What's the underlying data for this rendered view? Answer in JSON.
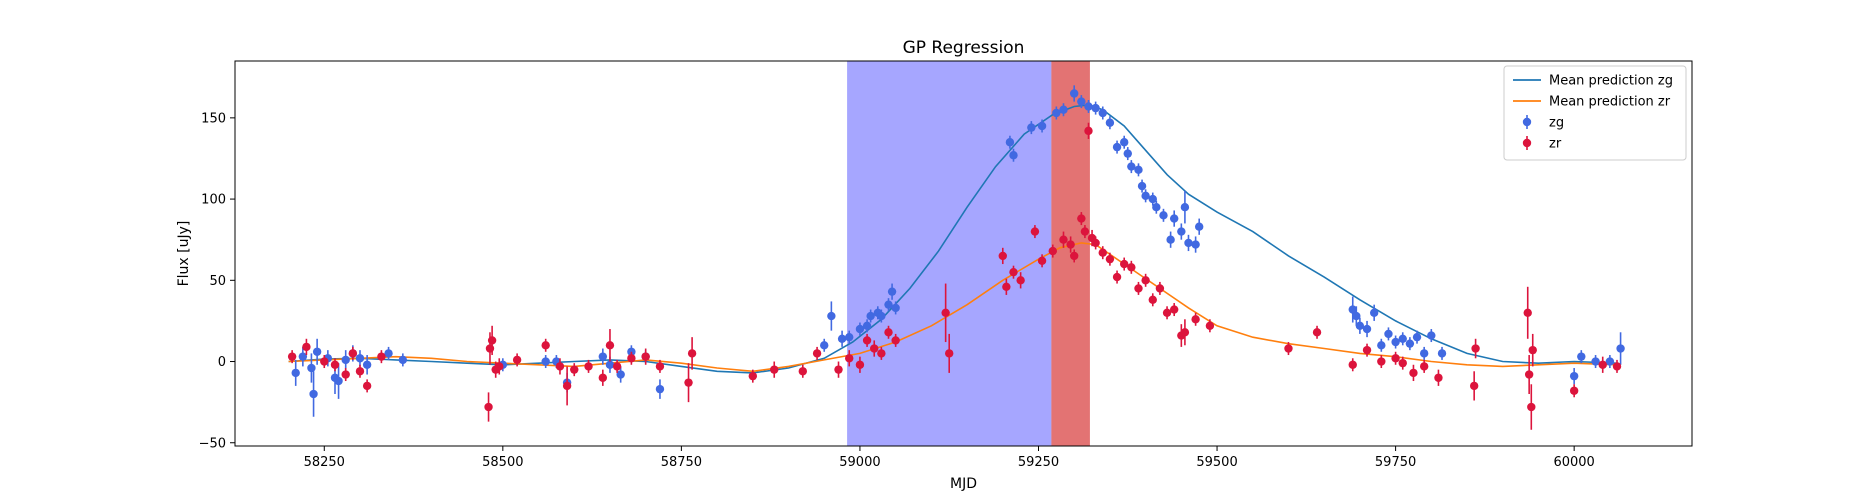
{
  "chart_data": {
    "type": "scatter",
    "title": "GP Regression",
    "xlabel": "MJD",
    "ylabel": "Flux [uJy]",
    "xlim": [
      58125,
      60165
    ],
    "ylim": [
      -52,
      185
    ],
    "xticks": [
      58250,
      58500,
      58750,
      59000,
      59250,
      59500,
      59750,
      60000
    ],
    "yticks": [
      -50,
      0,
      50,
      100,
      150
    ],
    "grid": false,
    "legend_position": "top-right",
    "shaded_regions": [
      {
        "x0": 58982,
        "x1": 59268,
        "color": "#0000ff",
        "opacity": 0.35
      },
      {
        "x0": 59268,
        "x1": 59322,
        "color": "#cc0000",
        "opacity": 0.55
      }
    ],
    "series": [
      {
        "name": "Mean prediction zg",
        "kind": "line",
        "color": "#1f77b4",
        "x": [
          58200,
          58250,
          58300,
          58350,
          58400,
          58450,
          58500,
          58550,
          58600,
          58650,
          58700,
          58750,
          58800,
          58850,
          58900,
          58950,
          58990,
          59030,
          59070,
          59110,
          59150,
          59190,
          59230,
          59270,
          59300,
          59320,
          59340,
          59370,
          59400,
          59430,
          59460,
          59500,
          59550,
          59600,
          59650,
          59700,
          59750,
          59800,
          59850,
          59900,
          59950,
          60000,
          60060
        ],
        "y": [
          0,
          1.5,
          2,
          1,
          0,
          -1,
          -2,
          -1,
          0,
          1,
          0,
          -3,
          -6,
          -7,
          -4,
          2,
          12,
          26,
          45,
          68,
          95,
          120,
          140,
          152,
          157,
          158,
          155,
          145,
          130,
          115,
          103,
          92,
          80,
          65,
          52,
          38,
          25,
          14,
          5,
          0,
          -1,
          0,
          -1
        ]
      },
      {
        "name": "Mean prediction zr",
        "kind": "line",
        "color": "#ff7f0e",
        "x": [
          58200,
          58250,
          58300,
          58350,
          58400,
          58450,
          58500,
          58550,
          58600,
          58650,
          58700,
          58750,
          58800,
          58850,
          58900,
          58950,
          59000,
          59050,
          59100,
          59150,
          59200,
          59250,
          59280,
          59310,
          59330,
          59350,
          59380,
          59420,
          59460,
          59500,
          59550,
          59600,
          59650,
          59700,
          59750,
          59800,
          59850,
          59900,
          59950,
          60000,
          60060
        ],
        "y": [
          0,
          1,
          2,
          3,
          2,
          0,
          -1,
          -2,
          -3,
          -1,
          1,
          -1,
          -4,
          -6,
          -3,
          1,
          5,
          12,
          22,
          35,
          50,
          63,
          70,
          73,
          72,
          66,
          57,
          45,
          33,
          22,
          15,
          11,
          8,
          5,
          3,
          0,
          -2,
          -3,
          -2,
          -1,
          -2
        ]
      },
      {
        "name": "zg",
        "kind": "errorbar",
        "color": "#4169e1",
        "points": [
          [
            58210,
            -7,
            8
          ],
          [
            58220,
            3,
            6
          ],
          [
            58232,
            -4,
            9
          ],
          [
            58235,
            -20,
            14
          ],
          [
            58240,
            6,
            8
          ],
          [
            58255,
            2,
            5
          ],
          [
            58265,
            -10,
            10
          ],
          [
            58270,
            -12,
            11
          ],
          [
            58280,
            1,
            6
          ],
          [
            58290,
            5,
            5
          ],
          [
            58300,
            2,
            5
          ],
          [
            58310,
            -2,
            6
          ],
          [
            58340,
            5,
            4
          ],
          [
            58360,
            1,
            4
          ],
          [
            58500,
            -2,
            4
          ],
          [
            58560,
            0,
            4
          ],
          [
            58575,
            0,
            4
          ],
          [
            58590,
            -13,
            6
          ],
          [
            58640,
            3,
            5
          ],
          [
            58650,
            -2,
            5
          ],
          [
            58665,
            -8,
            5
          ],
          [
            58680,
            6,
            4
          ],
          [
            58700,
            3,
            4
          ],
          [
            58720,
            -17,
            6
          ],
          [
            58950,
            10,
            4
          ],
          [
            58960,
            28,
            9
          ],
          [
            58975,
            14,
            5
          ],
          [
            58985,
            15,
            4
          ],
          [
            59000,
            20,
            4
          ],
          [
            59010,
            22,
            4
          ],
          [
            59015,
            28,
            4
          ],
          [
            59025,
            30,
            4
          ],
          [
            59030,
            28,
            4
          ],
          [
            59040,
            35,
            4
          ],
          [
            59045,
            43,
            5
          ],
          [
            59050,
            33,
            4
          ],
          [
            59210,
            135,
            4
          ],
          [
            59215,
            127,
            4
          ],
          [
            59240,
            144,
            4
          ],
          [
            59255,
            145,
            4
          ],
          [
            59275,
            153,
            4
          ],
          [
            59285,
            155,
            4
          ],
          [
            59300,
            165,
            5
          ],
          [
            59310,
            160,
            4
          ],
          [
            59320,
            157,
            4
          ],
          [
            59330,
            156,
            4
          ],
          [
            59340,
            153,
            4
          ],
          [
            59350,
            147,
            4
          ],
          [
            59360,
            132,
            4
          ],
          [
            59370,
            135,
            4
          ],
          [
            59375,
            128,
            4
          ],
          [
            59380,
            120,
            4
          ],
          [
            59390,
            118,
            4
          ],
          [
            59395,
            108,
            4
          ],
          [
            59400,
            102,
            4
          ],
          [
            59410,
            100,
            4
          ],
          [
            59415,
            95,
            4
          ],
          [
            59425,
            90,
            4
          ],
          [
            59435,
            75,
            5
          ],
          [
            59440,
            88,
            5
          ],
          [
            59450,
            80,
            5
          ],
          [
            59455,
            95,
            10
          ],
          [
            59460,
            73,
            5
          ],
          [
            59470,
            72,
            5
          ],
          [
            59475,
            83,
            5
          ],
          [
            59690,
            32,
            8
          ],
          [
            59695,
            28,
            6
          ],
          [
            59700,
            22,
            5
          ],
          [
            59710,
            20,
            5
          ],
          [
            59720,
            30,
            5
          ],
          [
            59730,
            10,
            4
          ],
          [
            59740,
            17,
            4
          ],
          [
            59750,
            12,
            4
          ],
          [
            59760,
            14,
            4
          ],
          [
            59770,
            11,
            4
          ],
          [
            59780,
            15,
            4
          ],
          [
            59790,
            5,
            4
          ],
          [
            59800,
            16,
            4
          ],
          [
            59815,
            5,
            4
          ],
          [
            60000,
            -9,
            5
          ],
          [
            60010,
            3,
            4
          ],
          [
            60030,
            0,
            4
          ],
          [
            60050,
            0,
            4
          ],
          [
            60065,
            8,
            10
          ]
        ]
      },
      {
        "name": "zr",
        "kind": "errorbar",
        "color": "#dc143c",
        "points": [
          [
            58205,
            3,
            4
          ],
          [
            58225,
            9,
            5
          ],
          [
            58250,
            0,
            4
          ],
          [
            58265,
            -2,
            4
          ],
          [
            58280,
            -8,
            4
          ],
          [
            58290,
            5,
            4
          ],
          [
            58300,
            -6,
            4
          ],
          [
            58310,
            -15,
            4
          ],
          [
            58330,
            3,
            4
          ],
          [
            58480,
            -28,
            9
          ],
          [
            58482,
            8,
            10
          ],
          [
            58485,
            13,
            9
          ],
          [
            58490,
            -5,
            5
          ],
          [
            58495,
            -3,
            5
          ],
          [
            58520,
            1,
            4
          ],
          [
            58560,
            10,
            4
          ],
          [
            58580,
            -3,
            5
          ],
          [
            58590,
            -15,
            12
          ],
          [
            58600,
            -5,
            4
          ],
          [
            58620,
            -3,
            4
          ],
          [
            58640,
            -10,
            5
          ],
          [
            58650,
            10,
            10
          ],
          [
            58660,
            -3,
            4
          ],
          [
            58680,
            2,
            4
          ],
          [
            58700,
            3,
            5
          ],
          [
            58720,
            -3,
            4
          ],
          [
            58760,
            -13,
            12
          ],
          [
            58765,
            5,
            10
          ],
          [
            58850,
            -9,
            4
          ],
          [
            58880,
            -5,
            5
          ],
          [
            58920,
            -6,
            4
          ],
          [
            58940,
            5,
            4
          ],
          [
            58970,
            -5,
            5
          ],
          [
            58985,
            2,
            5
          ],
          [
            59000,
            -2,
            5
          ],
          [
            59010,
            13,
            4
          ],
          [
            59020,
            8,
            5
          ],
          [
            59030,
            5,
            4
          ],
          [
            59040,
            18,
            4
          ],
          [
            59050,
            13,
            4
          ],
          [
            59120,
            30,
            18
          ],
          [
            59125,
            5,
            12
          ],
          [
            59200,
            65,
            5
          ],
          [
            59205,
            46,
            5
          ],
          [
            59215,
            55,
            4
          ],
          [
            59225,
            50,
            5
          ],
          [
            59245,
            80,
            4
          ],
          [
            59255,
            62,
            4
          ],
          [
            59270,
            68,
            4
          ],
          [
            59285,
            75,
            5
          ],
          [
            59295,
            72,
            5
          ],
          [
            59300,
            65,
            4
          ],
          [
            59310,
            88,
            4
          ],
          [
            59315,
            80,
            4
          ],
          [
            59320,
            142,
            5
          ],
          [
            59325,
            76,
            5
          ],
          [
            59330,
            73,
            4
          ],
          [
            59340,
            67,
            4
          ],
          [
            59350,
            63,
            4
          ],
          [
            59360,
            52,
            4
          ],
          [
            59370,
            60,
            4
          ],
          [
            59380,
            58,
            4
          ],
          [
            59390,
            45,
            4
          ],
          [
            59400,
            50,
            4
          ],
          [
            59410,
            38,
            4
          ],
          [
            59420,
            45,
            4
          ],
          [
            59430,
            30,
            4
          ],
          [
            59440,
            32,
            4
          ],
          [
            59450,
            16,
            7
          ],
          [
            59455,
            18,
            8
          ],
          [
            59470,
            26,
            4
          ],
          [
            59490,
            22,
            4
          ],
          [
            59600,
            8,
            4
          ],
          [
            59640,
            18,
            4
          ],
          [
            59690,
            -2,
            4
          ],
          [
            59710,
            7,
            4
          ],
          [
            59730,
            0,
            4
          ],
          [
            59750,
            2,
            4
          ],
          [
            59760,
            -1,
            4
          ],
          [
            59775,
            -7,
            5
          ],
          [
            59790,
            -3,
            4
          ],
          [
            59810,
            -10,
            5
          ],
          [
            59860,
            -15,
            9
          ],
          [
            59862,
            8,
            6
          ],
          [
            59935,
            30,
            16
          ],
          [
            59937,
            -8,
            12
          ],
          [
            59940,
            -28,
            14
          ],
          [
            59942,
            7,
            10
          ],
          [
            60000,
            -18,
            4
          ],
          [
            60040,
            -2,
            5
          ],
          [
            60060,
            -3,
            4
          ]
        ]
      }
    ]
  }
}
